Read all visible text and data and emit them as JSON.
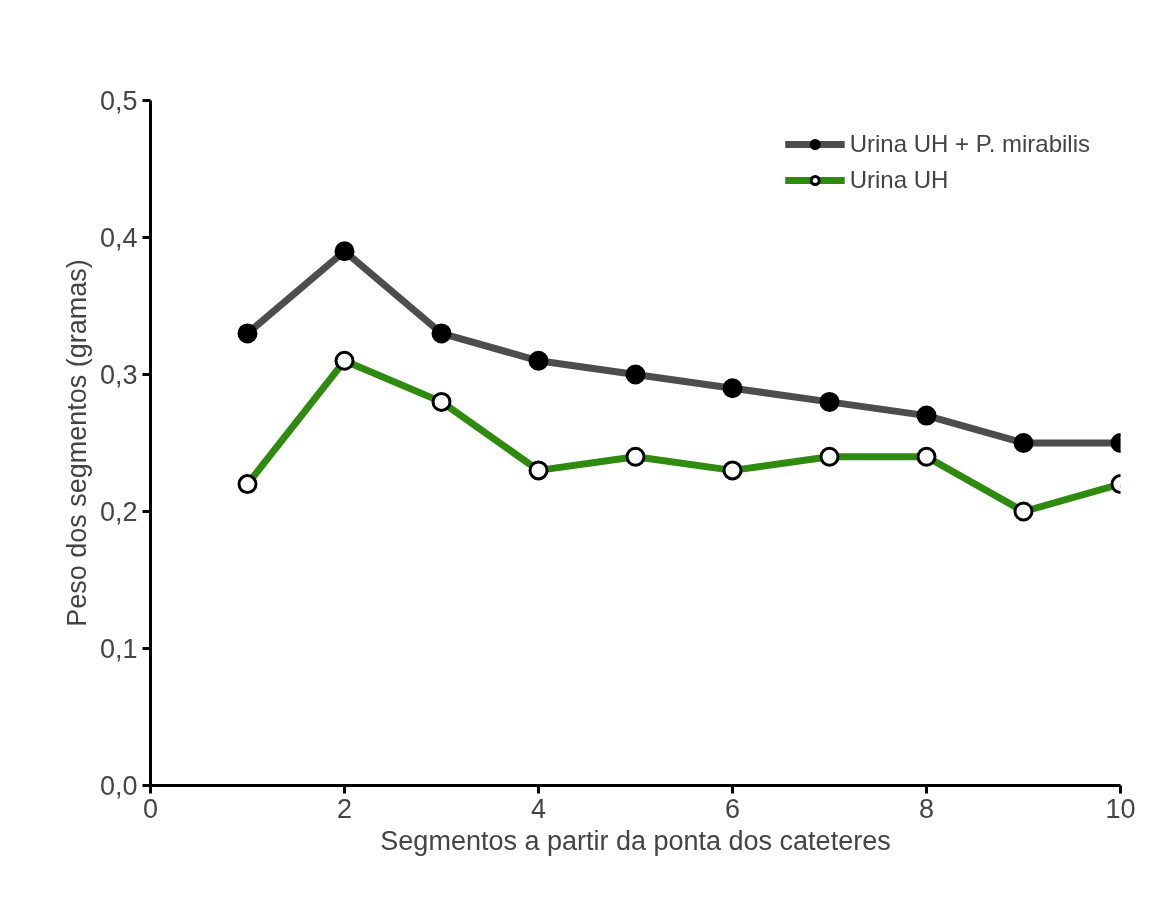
{
  "chart_data": {
    "type": "line",
    "xlabel": "Segmentos a partir da ponta dos cateteres",
    "ylabel": "Peso dos segmentos (gramas)",
    "x": [
      1,
      2,
      3,
      4,
      5,
      6,
      7,
      8,
      9,
      10
    ],
    "series": [
      {
        "name": "Urina UH + P. mirabilis",
        "color": "#4d4d4d",
        "values": [
          0.33,
          0.39,
          0.33,
          0.31,
          0.3,
          0.29,
          0.28,
          0.27,
          0.25,
          0.25
        ]
      },
      {
        "name": "Urina UH",
        "color": "#2e8b0e",
        "values": [
          0.22,
          0.31,
          0.28,
          0.23,
          0.24,
          0.23,
          0.24,
          0.24,
          0.2,
          0.22
        ]
      }
    ],
    "xlim": [
      0,
      10
    ],
    "ylim": [
      0,
      0.5
    ],
    "xticks": [
      0,
      2,
      4,
      6,
      8,
      10
    ],
    "yticks": [
      {
        "value": 0,
        "label": "0,0"
      },
      {
        "value": 0.1,
        "label": "0,1"
      },
      {
        "value": 0.2,
        "label": "0,2"
      },
      {
        "value": 0.3,
        "label": "0,3"
      },
      {
        "value": 0.4,
        "label": "0,4"
      },
      {
        "value": 0.5,
        "label": "0,5"
      }
    ],
    "grid": false,
    "legend": "top right",
    "marker": "circle",
    "line_style": "solid"
  }
}
